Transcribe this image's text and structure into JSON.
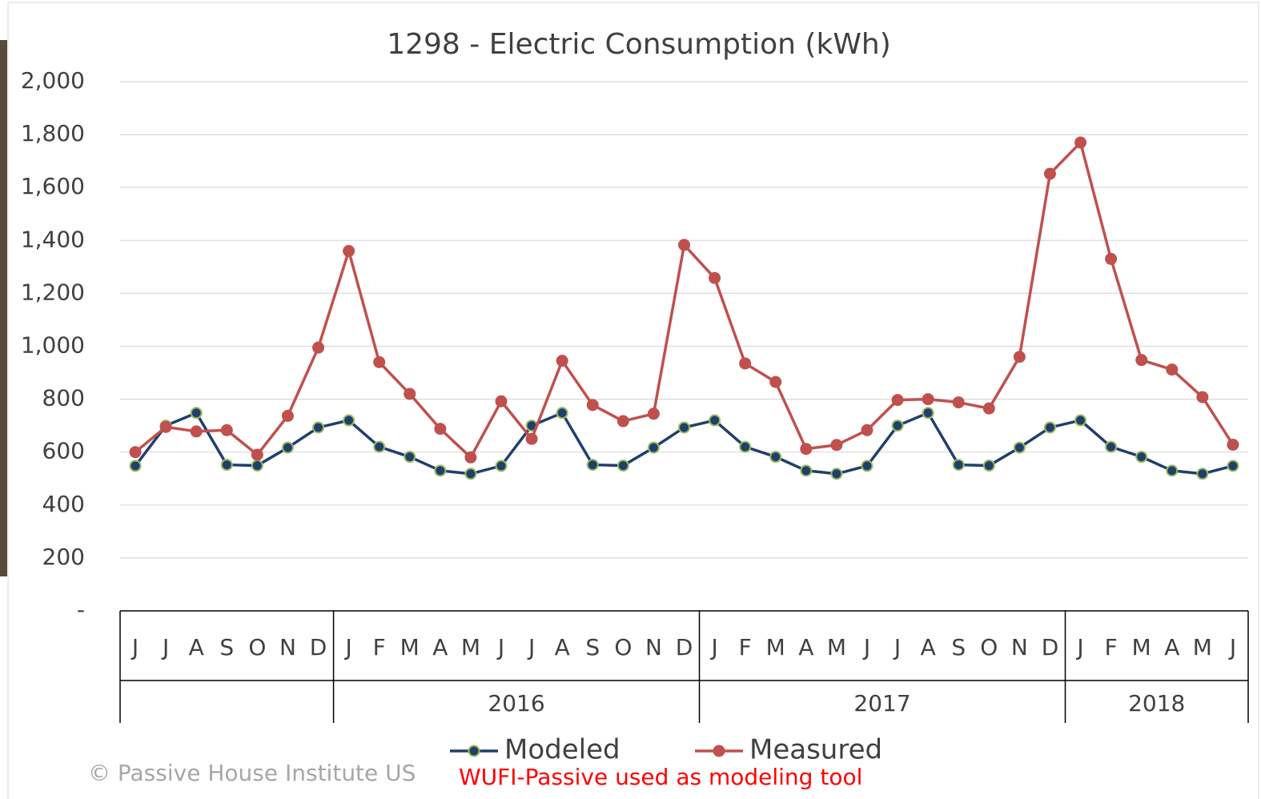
{
  "chart_data": {
    "type": "line",
    "title": "1298 - Electric Consumption (kWh)",
    "category_groups": [
      {
        "label": null,
        "categories": [
          "J",
          "J",
          "A",
          "S",
          "O",
          "N",
          "D"
        ]
      },
      {
        "label": "2016",
        "categories": [
          "J",
          "F",
          "M",
          "A",
          "M",
          "J",
          "J",
          "A",
          "S",
          "O",
          "N",
          "D"
        ]
      },
      {
        "label": "2017",
        "categories": [
          "J",
          "F",
          "M",
          "A",
          "M",
          "J",
          "J",
          "A",
          "S",
          "O",
          "N",
          "D"
        ]
      },
      {
        "label": "2018",
        "categories": [
          "J",
          "F",
          "M",
          "A",
          "M",
          "J"
        ]
      }
    ],
    "series": [
      {
        "name": "Modeled",
        "color": "#1f3f6e",
        "marker_edge": "#9bbb59",
        "values": [
          548,
          700,
          748,
          552,
          549,
          617,
          693,
          720,
          620,
          582,
          530,
          518,
          548,
          700,
          748,
          552,
          549,
          617,
          693,
          720,
          620,
          582,
          530,
          518,
          548,
          700,
          748,
          552,
          549,
          617,
          693,
          720,
          620,
          582,
          530,
          518,
          548
        ]
      },
      {
        "name": "Measured",
        "color": "#c0504d",
        "marker_edge": "#c0504d",
        "values": [
          600,
          695,
          678,
          683,
          590,
          737,
          995,
          1360,
          940,
          820,
          688,
          580,
          792,
          650,
          945,
          778,
          717,
          745,
          1383,
          1258,
          935,
          865,
          612,
          627,
          683,
          797,
          800,
          788,
          765,
          960,
          1652,
          1770,
          1330,
          948,
          912,
          808,
          628
        ]
      }
    ],
    "ylim": [
      0,
      2000
    ],
    "yticks": [
      {
        "value": 0,
        "label": "-"
      },
      200,
      400,
      600,
      800,
      {
        "value": 1000,
        "label": "1,000"
      },
      {
        "value": 1200,
        "label": "1,200"
      },
      {
        "value": 1400,
        "label": "1,400"
      },
      {
        "value": 1600,
        "label": "1,600"
      },
      {
        "value": 1800,
        "label": "1,800"
      },
      {
        "value": 2000,
        "label": "2,000"
      }
    ],
    "grid": true,
    "legend": "bottom",
    "footer": {
      "credit": "© Passive House Institute US",
      "note": "WUFI-Passive used as modeling tool"
    }
  }
}
